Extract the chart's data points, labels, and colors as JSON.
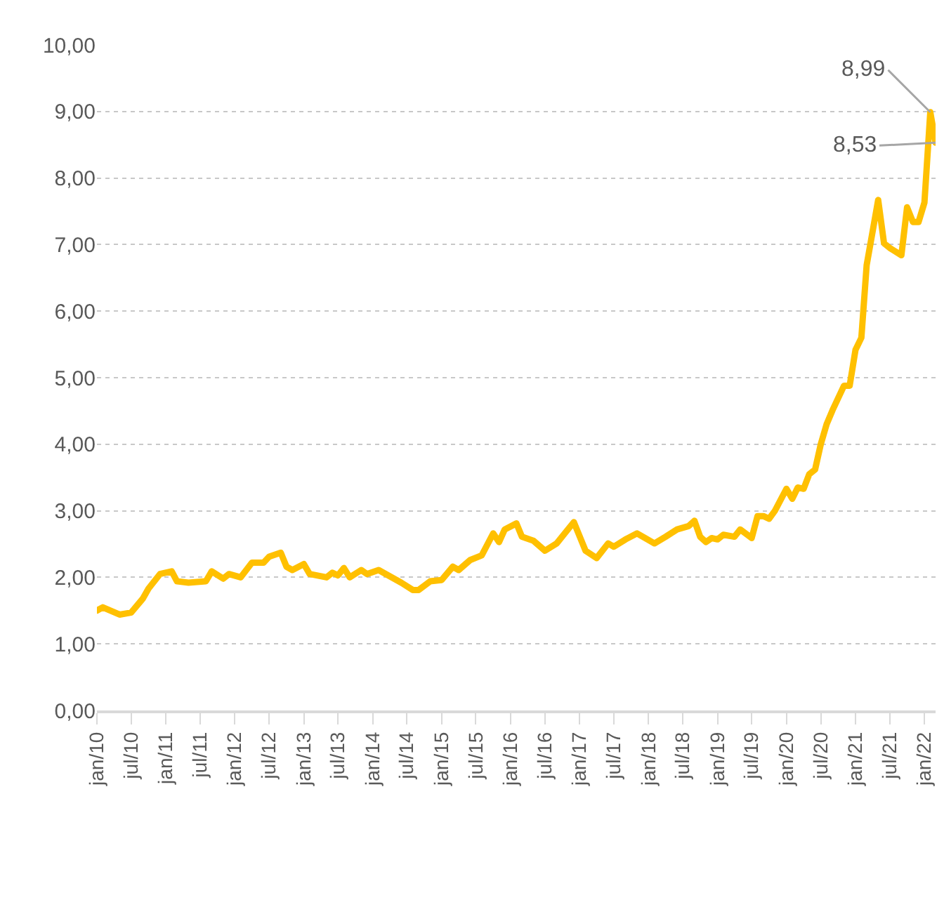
{
  "chart_data": {
    "type": "line",
    "x": [
      "2010-01",
      "2010-02",
      "2010-05",
      "2010-07",
      "2010-09",
      "2010-10",
      "2010-12",
      "2011-02",
      "2011-03",
      "2011-05",
      "2011-08",
      "2011-09",
      "2011-11",
      "2011-12",
      "2012-02",
      "2012-04",
      "2012-06",
      "2012-07",
      "2012-09",
      "2012-10",
      "2012-11",
      "2013-01",
      "2013-02",
      "2013-05",
      "2013-06",
      "2013-07",
      "2013-08",
      "2013-09",
      "2013-11",
      "2013-12",
      "2014-02",
      "2014-06",
      "2014-08",
      "2014-09",
      "2014-11",
      "2015-01",
      "2015-03",
      "2015-04",
      "2015-06",
      "2015-08",
      "2015-10",
      "2015-11",
      "2015-12",
      "2016-02",
      "2016-03",
      "2016-05",
      "2016-07",
      "2016-09",
      "2016-12",
      "2017-02",
      "2017-04",
      "2017-06",
      "2017-07",
      "2017-09",
      "2017-11",
      "2018-02",
      "2018-04",
      "2018-06",
      "2018-08",
      "2018-09",
      "2018-10",
      "2018-11",
      "2018-12",
      "2019-01",
      "2019-02",
      "2019-04",
      "2019-05",
      "2019-07",
      "2019-08",
      "2019-09",
      "2019-10",
      "2019-11",
      "2020-01",
      "2020-02",
      "2020-03",
      "2020-04",
      "2020-05",
      "2020-06",
      "2020-07",
      "2020-08",
      "2020-09",
      "2020-11",
      "2020-12",
      "2021-01",
      "2021-02",
      "2021-03",
      "2021-05",
      "2021-06",
      "2021-07",
      "2021-09",
      "2021-10",
      "2021-11",
      "2021-12",
      "2022-01",
      "2022-02",
      "2022-03"
    ],
    "series": [
      {
        "color": "#ffc000",
        "values": [
          1.5,
          1.55,
          1.44,
          1.47,
          1.68,
          1.83,
          2.05,
          2.09,
          1.94,
          1.92,
          1.94,
          2.09,
          1.98,
          2.05,
          2.0,
          2.22,
          2.22,
          2.31,
          2.37,
          2.16,
          2.11,
          2.2,
          2.05,
          2.0,
          2.07,
          2.03,
          2.14,
          2.0,
          2.11,
          2.05,
          2.11,
          1.92,
          1.81,
          1.81,
          1.94,
          1.96,
          2.16,
          2.11,
          2.26,
          2.33,
          2.66,
          2.53,
          2.72,
          2.81,
          2.61,
          2.55,
          2.4,
          2.51,
          2.83,
          2.4,
          2.29,
          2.51,
          2.46,
          2.57,
          2.66,
          2.51,
          2.61,
          2.72,
          2.77,
          2.85,
          2.61,
          2.53,
          2.59,
          2.57,
          2.64,
          2.61,
          2.72,
          2.59,
          2.92,
          2.92,
          2.88,
          3.0,
          3.33,
          3.18,
          3.35,
          3.33,
          3.55,
          3.62,
          4.0,
          4.3,
          4.51,
          4.88,
          4.88,
          5.42,
          5.6,
          6.69,
          7.67,
          7.02,
          6.95,
          6.84,
          7.56,
          7.34,
          7.34,
          7.63,
          8.99,
          8.53
        ]
      }
    ],
    "xlim": [
      "2010-01",
      "2022-03"
    ],
    "xticks": [
      {
        "value": "2010-01",
        "label": "jan/10"
      },
      {
        "value": "2010-07",
        "label": "jul/10"
      },
      {
        "value": "2011-01",
        "label": "jan/11"
      },
      {
        "value": "2011-07",
        "label": "jul/11"
      },
      {
        "value": "2012-01",
        "label": "jan/12"
      },
      {
        "value": "2012-07",
        "label": "jul/12"
      },
      {
        "value": "2013-01",
        "label": "jan/13"
      },
      {
        "value": "2013-07",
        "label": "jul/13"
      },
      {
        "value": "2014-01",
        "label": "jan/14"
      },
      {
        "value": "2014-07",
        "label": "jul/14"
      },
      {
        "value": "2015-01",
        "label": "jan/15"
      },
      {
        "value": "2015-07",
        "label": "jul/15"
      },
      {
        "value": "2016-01",
        "label": "jan/16"
      },
      {
        "value": "2016-07",
        "label": "jul/16"
      },
      {
        "value": "2017-01",
        "label": "jan/17"
      },
      {
        "value": "2017-07",
        "label": "jul/17"
      },
      {
        "value": "2018-01",
        "label": "jan/18"
      },
      {
        "value": "2018-07",
        "label": "jul/18"
      },
      {
        "value": "2019-01",
        "label": "jan/19"
      },
      {
        "value": "2019-07",
        "label": "jul/19"
      },
      {
        "value": "2020-01",
        "label": "jan/20"
      },
      {
        "value": "2020-07",
        "label": "jul/20"
      },
      {
        "value": "2021-01",
        "label": "jan/21"
      },
      {
        "value": "2021-07",
        "label": "jul/21"
      },
      {
        "value": "2022-01",
        "label": "jan/22"
      }
    ],
    "ylim": [
      0,
      10
    ],
    "yticks": [
      {
        "value": 0,
        "label": "0,00"
      },
      {
        "value": 1,
        "label": "1,00"
      },
      {
        "value": 2,
        "label": "2,00"
      },
      {
        "value": 3,
        "label": "3,00"
      },
      {
        "value": 4,
        "label": "4,00"
      },
      {
        "value": 5,
        "label": "5,00"
      },
      {
        "value": 6,
        "label": "6,00"
      },
      {
        "value": 7,
        "label": "7,00"
      },
      {
        "value": 8,
        "label": "8,00"
      },
      {
        "value": 9,
        "label": "9,00"
      },
      {
        "value": 10,
        "label": "10,00"
      }
    ],
    "grid": "y",
    "marker": "none",
    "line_style": "solid",
    "annotations": [
      {
        "text": "8,99",
        "x": "2022-02",
        "y": 8.99
      },
      {
        "text": "8,53",
        "x": "2022-03",
        "y": 8.53
      }
    ]
  }
}
